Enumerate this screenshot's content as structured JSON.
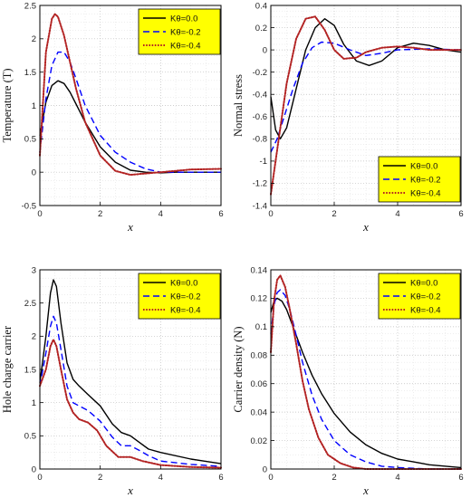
{
  "colors": {
    "background": "#ffffff",
    "legend_fill": "#ffff00",
    "grid": "#bdbdbd",
    "series": [
      "#000000",
      "#0000ff",
      "#b22222"
    ]
  },
  "legend_placement": [
    "top-right",
    "top-right",
    "top-right",
    "top-right"
  ],
  "chart_data": [
    {
      "type": "line",
      "xlabel": "x",
      "ylabel": "Temperature (T)",
      "xlim": [
        0,
        6
      ],
      "ylim": [
        -0.5,
        2.5
      ],
      "xticks": [
        "0",
        "2",
        "4",
        "6"
      ],
      "yticks": [
        "-0.5",
        "0",
        "0.5",
        "1",
        "1.5",
        "2",
        "2.5"
      ],
      "grid": true,
      "series": [
        {
          "name": "Kθ=0.0",
          "style": "solid",
          "x": [
            0,
            0.2,
            0.4,
            0.6,
            0.8,
            1.0,
            1.2,
            1.5,
            2.0,
            2.5,
            3.0,
            3.5,
            4.0,
            4.5,
            5.0,
            6.0
          ],
          "y": [
            0.55,
            1.05,
            1.3,
            1.37,
            1.33,
            1.2,
            1.02,
            0.75,
            0.38,
            0.15,
            0.03,
            0.0,
            -0.01,
            0.0,
            0.0,
            0.0
          ]
        },
        {
          "name": "Kθ=-0.2",
          "style": "dashed",
          "x": [
            0,
            0.2,
            0.4,
            0.6,
            0.8,
            1.0,
            1.2,
            1.5,
            2.0,
            2.5,
            3.0,
            3.5,
            4.0,
            5.0,
            6.0
          ],
          "y": [
            0.3,
            1.1,
            1.6,
            1.8,
            1.8,
            1.65,
            1.4,
            1.0,
            0.55,
            0.3,
            0.15,
            0.05,
            0.0,
            0.0,
            0.0
          ]
        },
        {
          "name": "Kθ=-0.4",
          "style": "dotted",
          "x": [
            0,
            0.2,
            0.4,
            0.5,
            0.6,
            0.8,
            1.0,
            1.2,
            1.5,
            2.0,
            2.5,
            3.0,
            3.5,
            4.0,
            4.5,
            5.0,
            6.0
          ],
          "y": [
            0.25,
            1.8,
            2.3,
            2.37,
            2.33,
            2.05,
            1.65,
            1.25,
            0.75,
            0.25,
            0.02,
            -0.04,
            -0.02,
            0.0,
            0.02,
            0.04,
            0.05
          ]
        }
      ]
    },
    {
      "type": "line",
      "xlabel": "x",
      "ylabel": "Normal stress",
      "xlim": [
        0,
        6
      ],
      "ylim": [
        -1.4,
        0.4
      ],
      "xticks": [
        "0",
        "2",
        "4",
        "6"
      ],
      "yticks": [
        "-1.4",
        "-1.2",
        "-1",
        "-0.8",
        "-0.6",
        "-0.4",
        "-0.2",
        "0",
        "0.2",
        "0.4"
      ],
      "grid": true,
      "series": [
        {
          "name": "Kθ=0.0",
          "style": "solid",
          "x": [
            0,
            0.15,
            0.3,
            0.5,
            0.8,
            1.1,
            1.4,
            1.7,
            2.0,
            2.3,
            2.7,
            3.1,
            3.5,
            4.0,
            4.5,
            5.0,
            5.5,
            6.0
          ],
          "y": [
            -0.42,
            -0.72,
            -0.8,
            -0.7,
            -0.35,
            0.0,
            0.2,
            0.28,
            0.22,
            0.05,
            -0.1,
            -0.14,
            -0.1,
            0.02,
            0.06,
            0.04,
            0.0,
            -0.02
          ]
        },
        {
          "name": "Kθ=-0.2",
          "style": "dashed",
          "x": [
            0,
            0.2,
            0.4,
            0.7,
            1.0,
            1.3,
            1.6,
            2.0,
            2.5,
            3.0,
            3.5,
            4.0,
            5.0,
            6.0
          ],
          "y": [
            -0.92,
            -0.8,
            -0.62,
            -0.35,
            -0.12,
            0.02,
            0.07,
            0.06,
            0.0,
            -0.05,
            -0.03,
            0.0,
            0.01,
            0.0
          ]
        },
        {
          "name": "Kθ=-0.4",
          "style": "dotted",
          "x": [
            0,
            0.1,
            0.3,
            0.5,
            0.8,
            1.1,
            1.4,
            1.7,
            2.0,
            2.3,
            2.7,
            3.0,
            3.5,
            4.0,
            4.5,
            5.0,
            6.0
          ],
          "y": [
            -1.3,
            -1.1,
            -0.7,
            -0.3,
            0.1,
            0.28,
            0.3,
            0.18,
            0.0,
            -0.08,
            -0.07,
            -0.02,
            0.02,
            0.03,
            0.02,
            0.0,
            0.0
          ]
        }
      ]
    },
    {
      "type": "line",
      "xlabel": "x",
      "ylabel": "Hole charge carrier",
      "xlim": [
        0,
        6
      ],
      "ylim": [
        0,
        3
      ],
      "xticks": [
        "0",
        "2",
        "4",
        "6"
      ],
      "yticks": [
        "0",
        "0.5",
        "1",
        "1.5",
        "2",
        "2.5",
        "3"
      ],
      "grid": true,
      "series": [
        {
          "name": "Kθ=0.0",
          "style": "solid",
          "x": [
            0,
            0.2,
            0.35,
            0.45,
            0.55,
            0.7,
            0.9,
            1.1,
            1.3,
            1.6,
            2.0,
            2.4,
            2.7,
            3.0,
            3.3,
            3.6,
            4.0,
            5.0,
            6.0
          ],
          "y": [
            1.3,
            2.0,
            2.65,
            2.85,
            2.75,
            2.2,
            1.6,
            1.35,
            1.25,
            1.12,
            0.95,
            0.68,
            0.55,
            0.5,
            0.4,
            0.3,
            0.25,
            0.15,
            0.08
          ]
        },
        {
          "name": "Kθ=-0.2",
          "style": "dashed",
          "x": [
            0,
            0.2,
            0.35,
            0.45,
            0.55,
            0.7,
            0.9,
            1.1,
            1.3,
            1.6,
            2.0,
            2.4,
            2.7,
            3.0,
            3.3,
            3.6,
            4.0,
            5.0,
            6.0
          ],
          "y": [
            1.25,
            1.75,
            2.15,
            2.3,
            2.2,
            1.8,
            1.25,
            1.0,
            0.95,
            0.88,
            0.72,
            0.48,
            0.35,
            0.35,
            0.28,
            0.2,
            0.12,
            0.07,
            0.04
          ]
        },
        {
          "name": "Kθ=-0.4",
          "style": "dotted",
          "x": [
            0,
            0.2,
            0.35,
            0.45,
            0.55,
            0.7,
            0.9,
            1.1,
            1.3,
            1.6,
            1.9,
            2.2,
            2.6,
            3.0,
            3.4,
            4.0,
            5.0,
            6.0
          ],
          "y": [
            1.25,
            1.5,
            1.85,
            1.95,
            1.85,
            1.5,
            1.05,
            0.85,
            0.75,
            0.7,
            0.58,
            0.35,
            0.18,
            0.18,
            0.12,
            0.06,
            0.03,
            0.02
          ]
        }
      ]
    },
    {
      "type": "line",
      "xlabel": "x",
      "ylabel": "Carrier density (N)",
      "xlim": [
        0,
        6
      ],
      "ylim": [
        0,
        0.14
      ],
      "xticks": [
        "0",
        "2",
        "4",
        "6"
      ],
      "yticks": [
        "0",
        "0.02",
        "0.04",
        "0.06",
        "0.08",
        "0.1",
        "0.12",
        "0.14"
      ],
      "grid": true,
      "series": [
        {
          "name": "Kθ=0.0",
          "style": "solid",
          "x": [
            0,
            0.1,
            0.2,
            0.35,
            0.5,
            0.7,
            1.0,
            1.3,
            1.6,
            2.0,
            2.5,
            3.0,
            3.5,
            4.0,
            4.5,
            5.0,
            6.0
          ],
          "y": [
            0.11,
            0.118,
            0.12,
            0.118,
            0.112,
            0.1,
            0.082,
            0.066,
            0.053,
            0.039,
            0.026,
            0.017,
            0.011,
            0.007,
            0.005,
            0.003,
            0.001
          ]
        },
        {
          "name": "Kθ=-0.2",
          "style": "dashed",
          "x": [
            0,
            0.1,
            0.2,
            0.3,
            0.45,
            0.6,
            0.8,
            1.0,
            1.3,
            1.6,
            2.0,
            2.5,
            3.0,
            3.5,
            4.0,
            5.0,
            6.0
          ],
          "y": [
            0.095,
            0.115,
            0.124,
            0.126,
            0.122,
            0.112,
            0.094,
            0.075,
            0.052,
            0.035,
            0.02,
            0.01,
            0.005,
            0.002,
            0.001,
            0.0,
            0.0
          ]
        },
        {
          "name": "Kθ=-0.4",
          "style": "dotted",
          "x": [
            0,
            0.1,
            0.2,
            0.3,
            0.45,
            0.6,
            0.8,
            1.0,
            1.2,
            1.5,
            1.8,
            2.2,
            2.6,
            3.0,
            4.0,
            6.0
          ],
          "y": [
            0.082,
            0.118,
            0.133,
            0.136,
            0.128,
            0.112,
            0.088,
            0.062,
            0.042,
            0.022,
            0.01,
            0.004,
            0.001,
            0.0,
            0.0,
            0.0
          ]
        }
      ]
    }
  ]
}
